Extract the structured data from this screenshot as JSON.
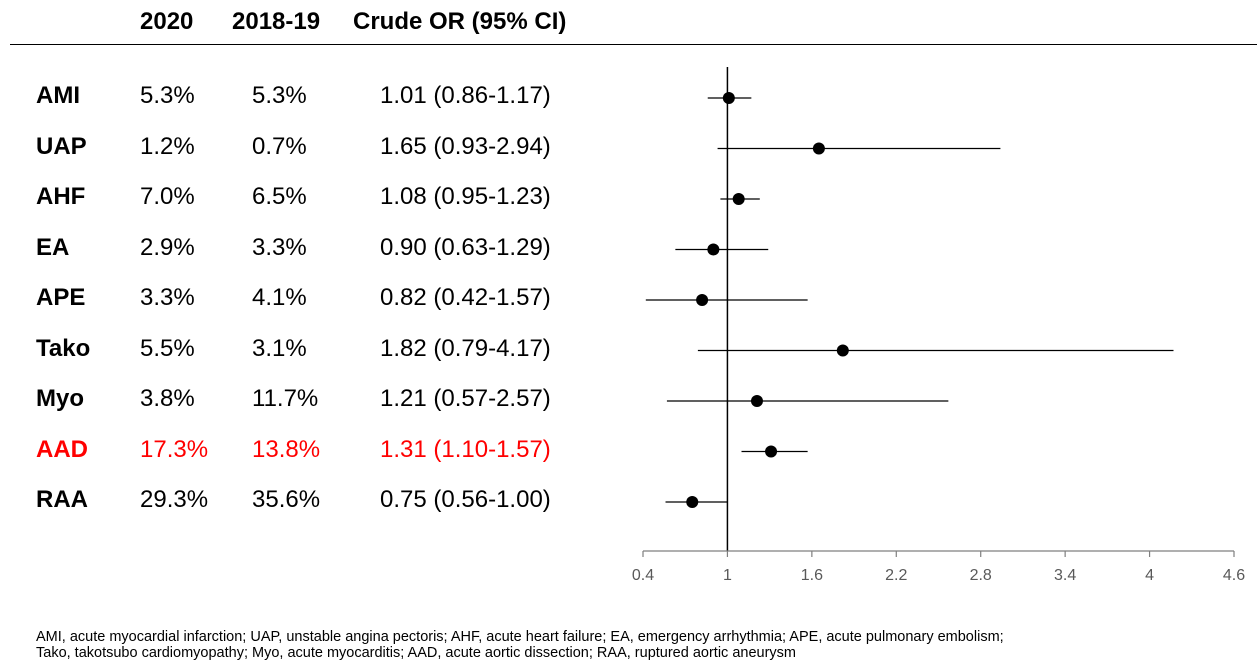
{
  "headers": {
    "y2020": "2020",
    "y2018": "2018-19",
    "or": "Crude OR (95% CI)"
  },
  "highlight_color": "#ff0000",
  "rows": [
    {
      "label": "AMI",
      "p2020": "5.3%",
      "p2018": "5.3%",
      "or_text": "1.01 (0.86-1.17)",
      "highlight": false
    },
    {
      "label": "UAP",
      "p2020": "1.2%",
      "p2018": "0.7%",
      "or_text": "1.65 (0.93-2.94)",
      "highlight": false
    },
    {
      "label": "AHF",
      "p2020": "7.0%",
      "p2018": "6.5%",
      "or_text": "1.08 (0.95-1.23)",
      "highlight": false
    },
    {
      "label": "EA",
      "p2020": "2.9%",
      "p2018": "3.3%",
      "or_text": "0.90 (0.63-1.29)",
      "highlight": false
    },
    {
      "label": "APE",
      "p2020": "3.3%",
      "p2018": "4.1%",
      "or_text": "0.82 (0.42-1.57)",
      "highlight": false
    },
    {
      "label": "Tako",
      "p2020": "5.5%",
      "p2018": "3.1%",
      "or_text": "1.82 (0.79-4.17)",
      "highlight": false
    },
    {
      "label": "Myo",
      "p2020": "3.8%",
      "p2018": "11.7%",
      "or_text": "1.21 (0.57-2.57)",
      "highlight": false
    },
    {
      "label": "AAD",
      "p2020": "17.3%",
      "p2018": "13.8%",
      "or_text": "1.31 (1.10-1.57)",
      "highlight": true
    },
    {
      "label": "RAA",
      "p2020": "29.3%",
      "p2018": "35.6%",
      "or_text": "0.75 (0.56-1.00)",
      "highlight": false
    }
  ],
  "chart_data": {
    "type": "forest",
    "categories": [
      "AMI",
      "UAP",
      "AHF",
      "EA",
      "APE",
      "Tako",
      "Myo",
      "AAD",
      "RAA"
    ],
    "or": [
      1.01,
      1.65,
      1.08,
      0.9,
      0.82,
      1.82,
      1.21,
      1.31,
      0.75
    ],
    "low": [
      0.86,
      0.93,
      0.95,
      0.63,
      0.42,
      0.79,
      0.57,
      1.1,
      0.56
    ],
    "high": [
      1.17,
      2.94,
      1.23,
      1.29,
      1.57,
      4.17,
      2.57,
      1.57,
      1.0
    ],
    "reference_line": 1,
    "xlim": [
      0.4,
      4.6
    ],
    "x_ticks": [
      "0.4",
      "1",
      "1.6",
      "2.2",
      "2.8",
      "3.4",
      "4",
      "4.6"
    ],
    "x_tick_values": [
      0.4,
      1,
      1.6,
      2.2,
      2.8,
      3.4,
      4,
      4.6
    ]
  },
  "footnote": {
    "line1": "AMI, acute myocardial infarction; UAP, unstable angina pectoris; AHF, acute heart failure; EA, emergency arrhythmia; APE, acute pulmonary embolism;",
    "line2": "Tako, takotsubo cardiomyopathy; Myo, acute myocarditis; AAD, acute aortic dissection; RAA, ruptured aortic aneurysm"
  }
}
